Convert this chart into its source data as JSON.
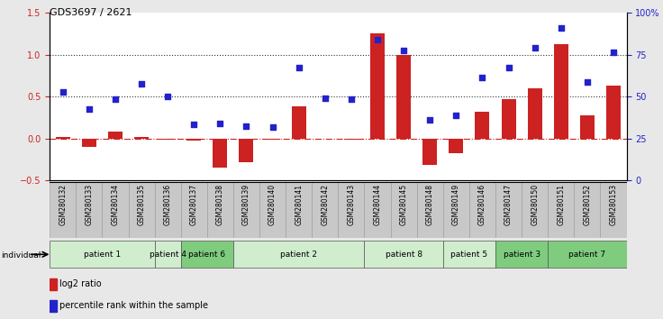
{
  "title": "GDS3697 / 2621",
  "samples": [
    "GSM280132",
    "GSM280133",
    "GSM280134",
    "GSM280135",
    "GSM280136",
    "GSM280137",
    "GSM280138",
    "GSM280139",
    "GSM280140",
    "GSM280141",
    "GSM280142",
    "GSM280143",
    "GSM280144",
    "GSM280145",
    "GSM280148",
    "GSM280149",
    "GSM280146",
    "GSM280147",
    "GSM280150",
    "GSM280151",
    "GSM280152",
    "GSM280153"
  ],
  "log2_ratio": [
    0.02,
    -0.1,
    0.08,
    0.02,
    -0.02,
    -0.03,
    -0.35,
    -0.28,
    -0.02,
    0.38,
    -0.01,
    -0.02,
    1.25,
    1.0,
    -0.32,
    -0.18,
    0.32,
    0.47,
    0.6,
    1.12,
    0.27,
    0.63
  ],
  "percentile": [
    0.55,
    0.35,
    0.47,
    0.65,
    0.5,
    0.17,
    0.18,
    0.15,
    0.13,
    0.85,
    0.48,
    0.47,
    1.18,
    1.05,
    0.22,
    0.28,
    0.73,
    0.84,
    1.08,
    1.32,
    0.67,
    1.03
  ],
  "patients": [
    {
      "label": "patient 1",
      "start": 0,
      "end": 4,
      "color": "#d0edce"
    },
    {
      "label": "patient 4",
      "start": 4,
      "end": 5,
      "color": "#d0edce"
    },
    {
      "label": "patient 6",
      "start": 5,
      "end": 7,
      "color": "#7fcc7f"
    },
    {
      "label": "patient 2",
      "start": 7,
      "end": 12,
      "color": "#d0edce"
    },
    {
      "label": "patient 8",
      "start": 12,
      "end": 15,
      "color": "#d0edce"
    },
    {
      "label": "patient 5",
      "start": 15,
      "end": 17,
      "color": "#d0edce"
    },
    {
      "label": "patient 3",
      "start": 17,
      "end": 19,
      "color": "#7fcc7f"
    },
    {
      "label": "patient 7",
      "start": 19,
      "end": 22,
      "color": "#7fcc7f"
    }
  ],
  "bar_color": "#cc2222",
  "dot_color": "#2222cc",
  "ylim_left": [
    -0.5,
    1.5
  ],
  "ylim_right": [
    0,
    100
  ],
  "yticks_left": [
    -0.5,
    0.0,
    0.5,
    1.0,
    1.5
  ],
  "yticks_right": [
    0,
    25,
    50,
    75,
    100
  ],
  "ytick_labels_right": [
    "0",
    "25",
    "50",
    "75",
    "100%"
  ],
  "hlines": [
    0.0,
    0.5,
    1.0
  ],
  "hline_styles": [
    "dashdot",
    "dotted",
    "dotted"
  ],
  "hline_colors": [
    "#cc2222",
    "#333333",
    "#333333"
  ],
  "bg_color": "#e8e8e8",
  "plot_bg": "#ffffff",
  "cell_bg": "#c8c8c8"
}
